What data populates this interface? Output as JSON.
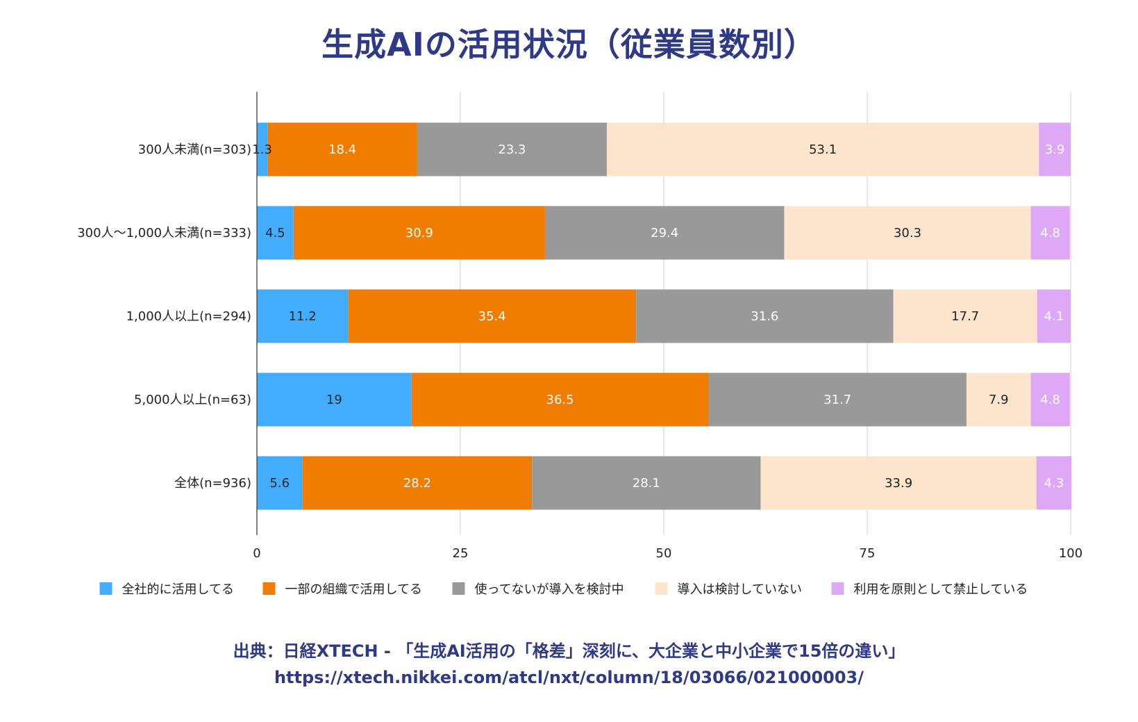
{
  "title": "生成AIの活用状況（従業員数別）",
  "chart_data": {
    "type": "bar",
    "orientation": "horizontal",
    "stacked": true,
    "categories": [
      "300人未満(n=303)",
      "300人～1,000人未満(n=333)",
      "1,000人以上(n=294)",
      "5,000人以上(n=63)",
      "全体(n=936)"
    ],
    "series": [
      {
        "name": "全社的に活用してる",
        "color": "#42adff",
        "label_color": "#222222",
        "values": [
          1.3,
          4.5,
          11.2,
          19,
          5.6
        ]
      },
      {
        "name": "一部の組織で活用してる",
        "color": "#f07c00",
        "label_color": "#ffffff",
        "values": [
          18.4,
          30.9,
          35.4,
          36.5,
          28.2
        ]
      },
      {
        "name": "使ってないが導入を検討中",
        "color": "#999999",
        "label_color": "#ffffff",
        "values": [
          23.3,
          29.4,
          31.6,
          31.7,
          28.1
        ]
      },
      {
        "name": "導入は検討していない",
        "color": "#fde4cc",
        "label_color": "#222222",
        "values": [
          53.1,
          30.3,
          17.7,
          7.9,
          33.9
        ]
      },
      {
        "name": "利用を原則として禁止している",
        "color": "#dfa8f7",
        "label_color": "#ffffff",
        "values": [
          3.9,
          4.8,
          4.1,
          4.8,
          4.3
        ]
      }
    ],
    "xlim": [
      0,
      100
    ],
    "xticks": [
      0,
      25,
      50,
      75,
      100
    ],
    "grid": true,
    "legend": "bottom"
  },
  "source": {
    "line1": "出典：日経XTECH - 「生成AI活用の「格差」深刻に、大企業と中小企業で15倍の違い」",
    "line2": "https://xtech.nikkei.com/atcl/nxt/column/18/03066/021000003/"
  }
}
